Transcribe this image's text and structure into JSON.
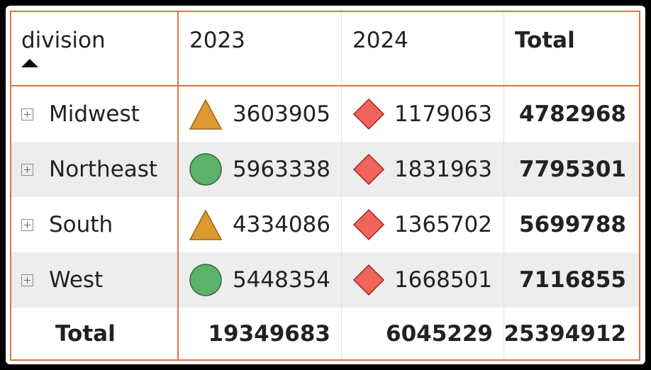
{
  "header": {
    "row_field": "division",
    "columns": [
      "2023",
      "2024"
    ],
    "total_label": "Total"
  },
  "rows": [
    {
      "label": "Midwest",
      "v2023": "3603905",
      "icon2023": "warning-triangle",
      "v2024": "1179063",
      "icon2024": "bad-diamond",
      "total": "4782968"
    },
    {
      "label": "Northeast",
      "v2023": "5963338",
      "icon2023": "good-circle",
      "v2024": "1831963",
      "icon2024": "bad-diamond",
      "total": "7795301"
    },
    {
      "label": "South",
      "v2023": "4334086",
      "icon2023": "warning-triangle",
      "v2024": "1365702",
      "icon2024": "bad-diamond",
      "total": "5699788"
    },
    {
      "label": "West",
      "v2023": "5448354",
      "icon2023": "good-circle",
      "v2024": "1668501",
      "icon2024": "bad-diamond",
      "total": "7116855"
    }
  ],
  "totals": {
    "label": "Total",
    "v2023": "19349683",
    "v2024": "6045229",
    "grand": "25394912"
  },
  "colors": {
    "accent_border": "#d9773f",
    "good": "#5db26b",
    "warning": "#db9a32",
    "bad": "#f0645b",
    "banded_row": "#ededed"
  }
}
